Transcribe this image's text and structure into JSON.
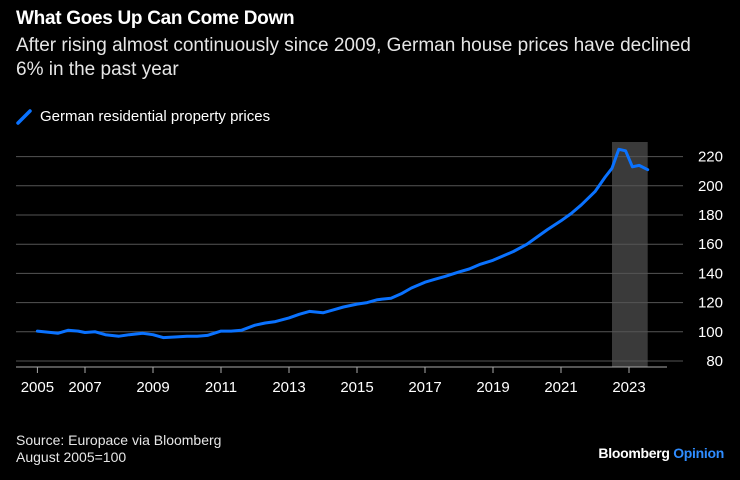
{
  "header": {
    "title": "What Goes Up Can Come Down",
    "subtitle": "After rising almost continuously since 2009, German house prices have declined 6% in the past year"
  },
  "footer": {
    "source": "Source: Europace via Bloomberg",
    "note": "August 2005=100",
    "logo_main": "Bloomberg",
    "logo_accent": "Opinion"
  },
  "colors": {
    "line": "#0a72ff",
    "shade": "#3a3a3a",
    "grid": "#555555",
    "background": "#000000"
  },
  "chart_data": {
    "type": "line",
    "title": "What Goes Up Can Come Down",
    "legend": "top-left",
    "grid": true,
    "ylim": [
      80,
      230
    ],
    "yticks": [
      80,
      100,
      120,
      140,
      160,
      180,
      200,
      220
    ],
    "xticks": [
      {
        "label": "2005",
        "x": 2005.6
      },
      {
        "label": "2007",
        "x": 2007
      },
      {
        "label": "2009",
        "x": 2009
      },
      {
        "label": "2011",
        "x": 2011
      },
      {
        "label": "2013",
        "x": 2013
      },
      {
        "label": "2015",
        "x": 2015
      },
      {
        "label": "2017",
        "x": 2017
      },
      {
        "label": "2019",
        "x": 2019
      },
      {
        "label": "2021",
        "x": 2021
      },
      {
        "label": "2023",
        "x": 2023
      }
    ],
    "shaded_range": [
      2022.5,
      2023.55
    ],
    "series": [
      {
        "name": "German residential property prices",
        "x": [
          2005.6,
          2006.0,
          2006.2,
          2006.5,
          2006.8,
          2007.0,
          2007.3,
          2007.6,
          2008.0,
          2008.3,
          2008.7,
          2009.0,
          2009.3,
          2009.7,
          2010.0,
          2010.3,
          2010.6,
          2011.0,
          2011.3,
          2011.6,
          2012.0,
          2012.3,
          2012.6,
          2013.0,
          2013.3,
          2013.6,
          2014.0,
          2014.3,
          2014.6,
          2015.0,
          2015.3,
          2015.6,
          2016.0,
          2016.3,
          2016.6,
          2017.0,
          2017.3,
          2017.6,
          2018.0,
          2018.3,
          2018.6,
          2019.0,
          2019.3,
          2019.6,
          2020.0,
          2020.3,
          2020.6,
          2021.0,
          2021.3,
          2021.6,
          2022.0,
          2022.3,
          2022.5,
          2022.7,
          2022.9,
          2023.1,
          2023.3,
          2023.55
        ],
        "values": [
          100.5,
          99.5,
          99,
          101,
          100.5,
          99.5,
          100,
          98,
          97,
          98,
          99,
          98,
          96,
          96.5,
          97,
          97,
          97.5,
          100.5,
          100.5,
          101,
          104.5,
          106,
          107,
          109.5,
          112,
          114,
          113,
          115,
          117,
          119,
          120,
          122,
          123,
          126,
          130,
          134,
          136,
          138,
          141,
          143,
          146,
          149,
          152,
          155,
          160,
          165,
          170,
          176,
          181,
          187,
          196,
          206,
          212,
          225,
          224,
          213,
          214,
          211
        ]
      }
    ]
  }
}
